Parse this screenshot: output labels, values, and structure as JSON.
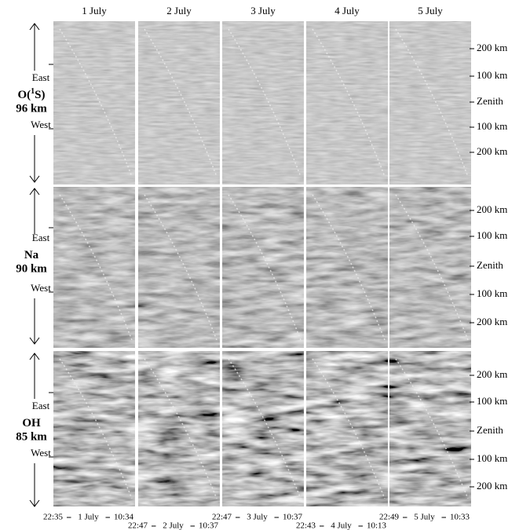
{
  "figure": {
    "columns": [
      "1 July",
      "2 July",
      "3 July",
      "4 July",
      "5 July"
    ],
    "rows": [
      {
        "name_pre": "O(",
        "name_sup": "1",
        "name_post": "S)",
        "altitude": "96 km",
        "east": "East",
        "west": "West",
        "scale": [
          "200 km",
          "100 km",
          "Zenith",
          "100 km",
          "200 km"
        ]
      },
      {
        "name_pre": "Na",
        "altitude": "90 km",
        "east": "East",
        "west": "West",
        "scale": [
          "200 km",
          "100 km",
          "Zenith",
          "100 km",
          "200 km"
        ]
      },
      {
        "name_pre": "OH",
        "altitude": "85 km",
        "east": "East",
        "west": "West",
        "scale": [
          "200 km",
          "100 km",
          "Zenith",
          "100 km",
          "200 km"
        ]
      }
    ],
    "times": [
      {
        "start": "22:35",
        "date": "1 July",
        "end": "10:34"
      },
      {
        "start": "22:47",
        "date": "2 July",
        "end": "10:37"
      },
      {
        "start": "22:47",
        "date": "3 July",
        "end": "10:37"
      },
      {
        "start": "22:43",
        "date": "4 July",
        "end": "10:13"
      },
      {
        "start": "22:49",
        "date": "5 July",
        "end": "10:33"
      }
    ]
  }
}
